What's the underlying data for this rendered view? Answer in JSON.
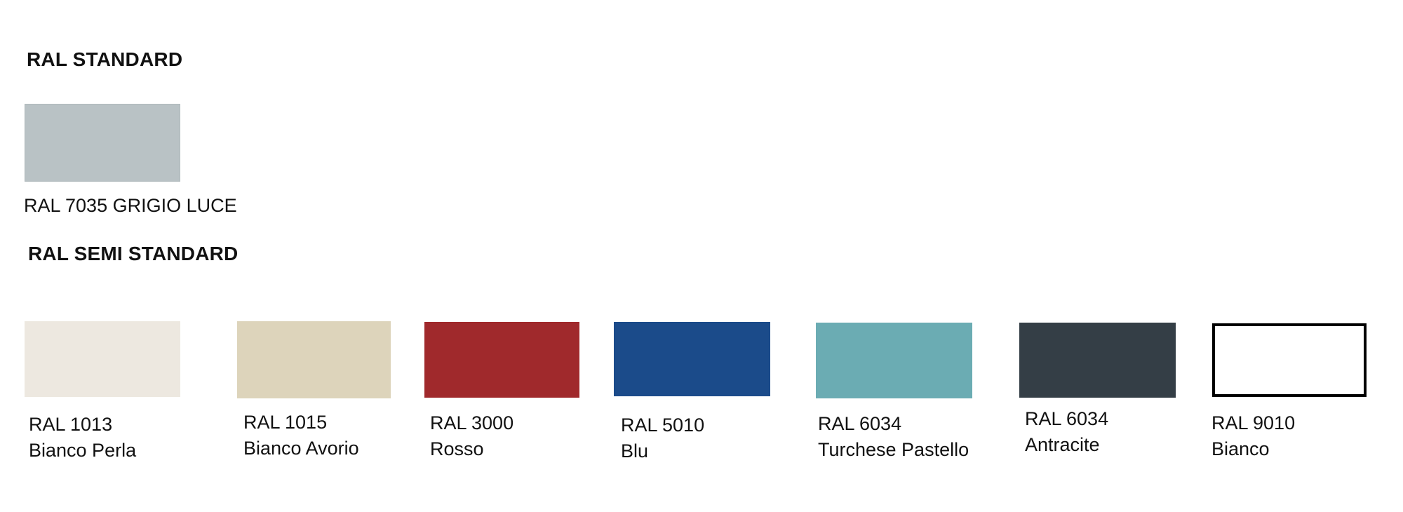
{
  "sections": {
    "standard": {
      "title": "RAL STANDARD",
      "colors": [
        {
          "label": "RAL 7035 GRIGIO LUCE",
          "hex": "#b9c2c5"
        }
      ]
    },
    "semi_standard": {
      "title": "RAL SEMI STANDARD",
      "colors": [
        {
          "code": "RAL 1013",
          "name": "Bianco Perla",
          "hex": "#ede8e0"
        },
        {
          "code": "RAL 1015",
          "name": "Bianco Avorio",
          "hex": "#ddd4bb"
        },
        {
          "code": "RAL 3000",
          "name": "Rosso",
          "hex": "#a0292c"
        },
        {
          "code": "RAL 5010",
          "name": "Blu",
          "hex": "#1b4b8a"
        },
        {
          "code": "RAL 6034",
          "name": "Turchese Pastello",
          "hex": "#6bacb3"
        },
        {
          "code": "RAL 6034",
          "name": "Antracite",
          "hex": "#343e46"
        },
        {
          "code": "RAL 9010",
          "name": "Bianco",
          "hex": "#ffffff"
        }
      ]
    }
  }
}
